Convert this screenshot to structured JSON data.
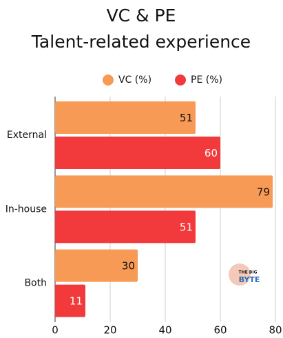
{
  "chart_data": {
    "type": "barh",
    "title": "VC & PE",
    "subtitle": "Talent-related experience",
    "categories": [
      "External",
      "In-house",
      "Both"
    ],
    "series": [
      {
        "name": "VC (%)",
        "color": "#f79a55",
        "values": [
          51,
          79,
          30
        ]
      },
      {
        "name": "PE (%)",
        "color": "#f23a3c",
        "values": [
          60,
          51,
          11
        ]
      }
    ],
    "xlim": [
      0,
      80
    ],
    "xticks": [
      0,
      20,
      40,
      60,
      80
    ],
    "grid": true,
    "watermark": [
      "THE BIG",
      "BYTE"
    ]
  }
}
